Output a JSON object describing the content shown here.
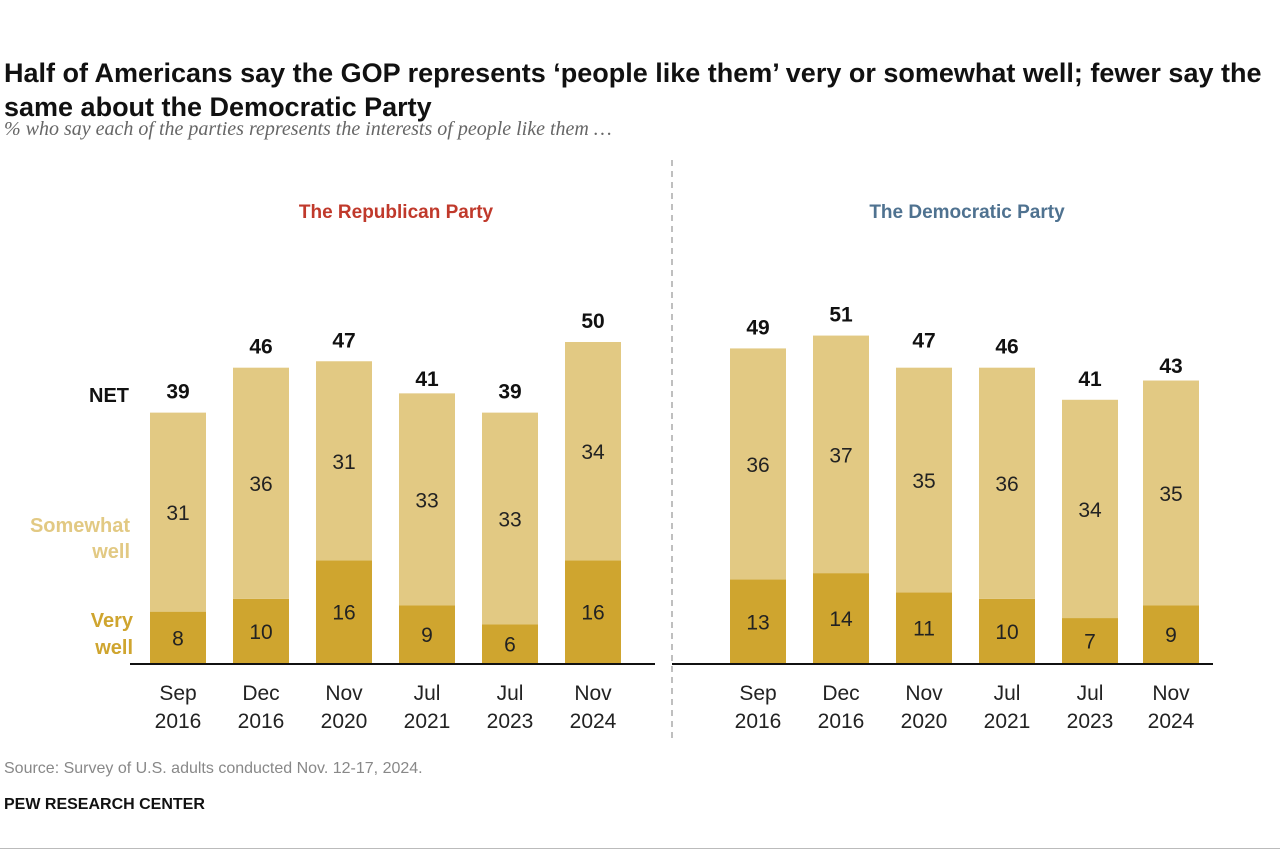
{
  "title": "Half of Americans say the GOP represents ‘people like them’ very or somewhat well; fewer say the same about the Democratic Party",
  "subtitle": "% who say each of the parties represents the interests of people like them …",
  "source": "Source: Survey of U.S. adults conducted Nov. 12-17, 2024.",
  "brand": "PEW RESEARCH CENTER",
  "colors": {
    "very_well": "#CFA52F",
    "somewhat_well": "#E2C983",
    "republican": "#C0392B",
    "democratic": "#4F7290"
  },
  "chart_data": [
    {
      "type": "bar",
      "stacked": true,
      "title": "The Republican Party",
      "categories": [
        [
          "Sep",
          "2016"
        ],
        [
          "Dec",
          "2016"
        ],
        [
          "Nov",
          "2020"
        ],
        [
          "Jul",
          "2021"
        ],
        [
          "Jul",
          "2023"
        ],
        [
          "Nov",
          "2024"
        ]
      ],
      "series": [
        {
          "name": "Very well",
          "values": [
            8,
            10,
            16,
            9,
            6,
            16
          ]
        },
        {
          "name": "Somewhat well",
          "values": [
            31,
            36,
            31,
            33,
            33,
            34
          ]
        }
      ],
      "net": [
        39,
        46,
        47,
        41,
        39,
        50
      ],
      "net_label": "NET"
    },
    {
      "type": "bar",
      "stacked": true,
      "title": "The Democratic Party",
      "categories": [
        [
          "Sep",
          "2016"
        ],
        [
          "Dec",
          "2016"
        ],
        [
          "Nov",
          "2020"
        ],
        [
          "Jul",
          "2021"
        ],
        [
          "Jul",
          "2023"
        ],
        [
          "Nov",
          "2024"
        ]
      ],
      "series": [
        {
          "name": "Very well",
          "values": [
            13,
            14,
            11,
            10,
            7,
            9
          ]
        },
        {
          "name": "Somewhat well",
          "values": [
            36,
            37,
            35,
            36,
            34,
            35
          ]
        }
      ],
      "net": [
        49,
        51,
        47,
        46,
        41,
        43
      ]
    }
  ]
}
